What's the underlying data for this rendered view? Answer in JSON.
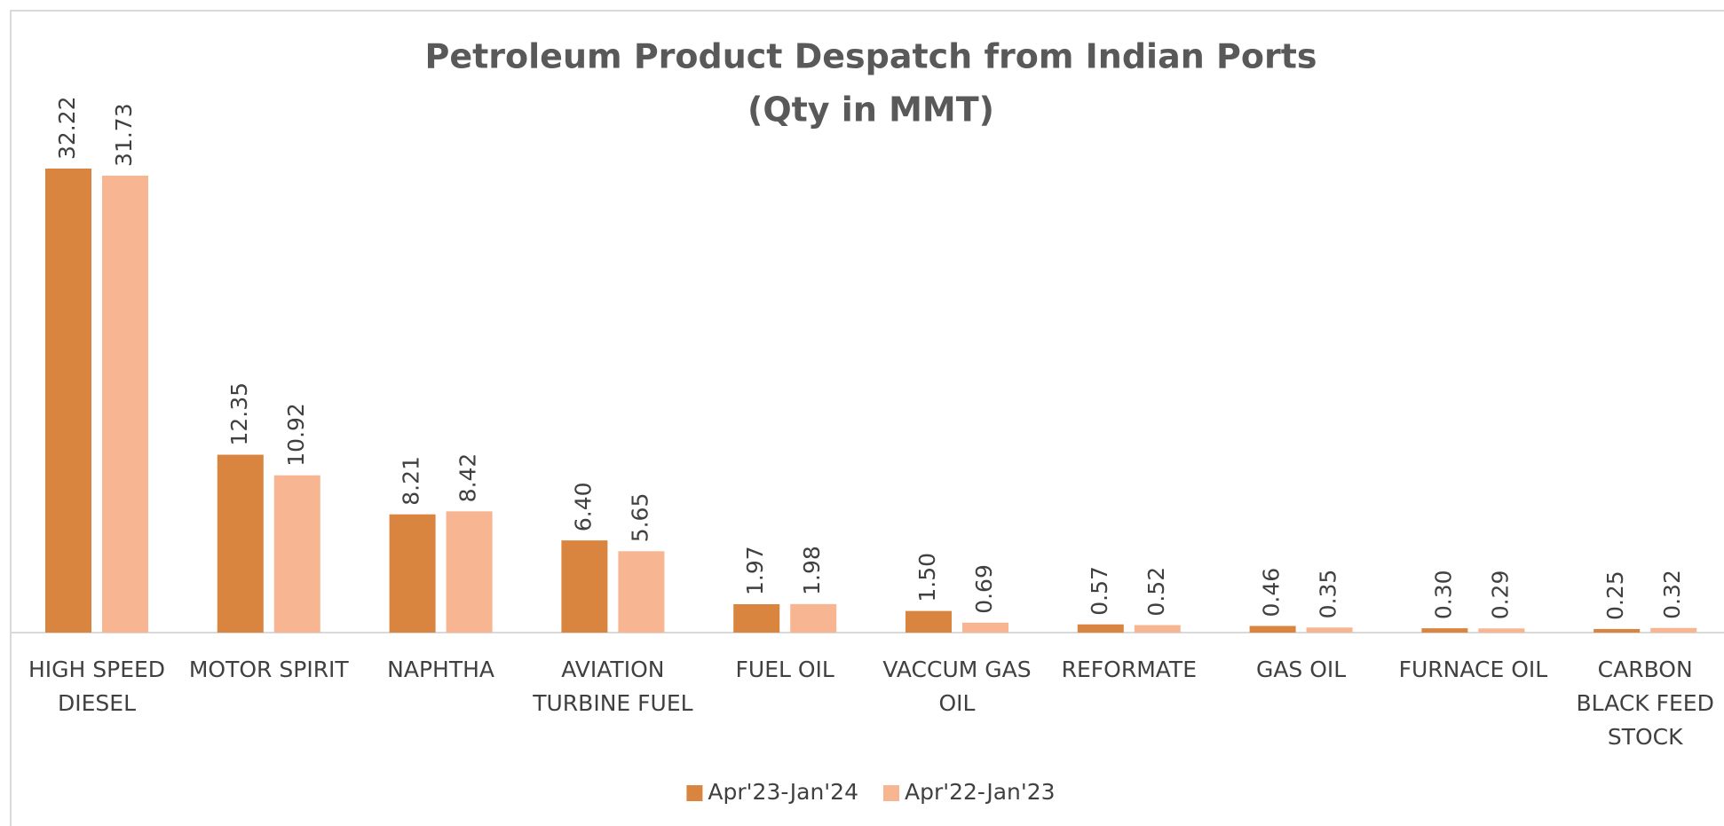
{
  "chart_data": {
    "type": "bar",
    "title": "Petroleum Product Despatch from Indian Ports",
    "subtitle": "(Qty in MMT)",
    "categories": [
      "HIGH SPEED DIESEL",
      "MOTOR SPIRIT",
      "NAPHTHA",
      "AVIATION TURBINE FUEL",
      "FUEL OIL",
      "VACCUM GAS OIL",
      "REFORMATE",
      "GAS OIL",
      "FURNACE OIL",
      "CARBON BLACK FEED STOCK"
    ],
    "series": [
      {
        "name": "Apr'23-Jan'24",
        "color": "#d9843f",
        "values": [
          32.22,
          12.35,
          8.21,
          6.4,
          1.97,
          1.5,
          0.57,
          0.46,
          0.3,
          0.25
        ],
        "value_labels": [
          "32.22",
          "12.35",
          "8.21",
          "6.40",
          "1.97",
          "1.50",
          "0.57",
          "0.46",
          "0.30",
          "0.25"
        ]
      },
      {
        "name": "Apr'22-Jan'23",
        "color": "#f8b592",
        "values": [
          31.73,
          10.92,
          8.42,
          5.65,
          1.98,
          0.69,
          0.52,
          0.35,
          0.29,
          0.32
        ],
        "value_labels": [
          "31.73",
          "10.92",
          "8.42",
          "5.65",
          "1.98",
          "0.69",
          "0.52",
          "0.35",
          "0.29",
          "0.32"
        ]
      }
    ],
    "legend": "bottom"
  }
}
